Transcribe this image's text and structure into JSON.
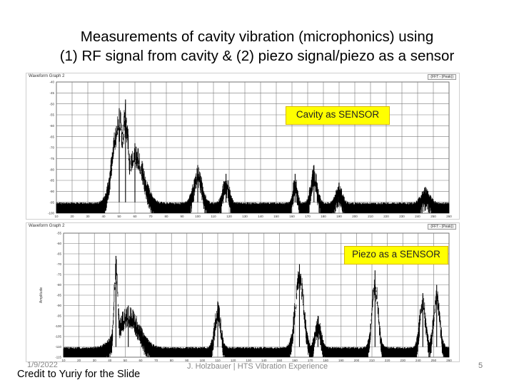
{
  "slide": {
    "title_line1": "Measurements of cavity vibration (microphonics) using",
    "title_line2": "(1) RF signal from cavity  & (2) piezo signal/piezo as a sensor",
    "date": "1/9/2022",
    "author": "J. Holzbauer | HTS Vibration Experience",
    "page_number": "5",
    "credit": "Credit to Yuriy for the Slide"
  },
  "colors": {
    "trace": "#000000",
    "grid": "#7a7a7a",
    "callout_fill": "#ffff00"
  },
  "chart_data": [
    {
      "type": "line",
      "panel_title": "Waveform Graph 2",
      "legend": "(FFT - (Peak))",
      "annotation": "Cavity as SENSOR",
      "xlabel": "",
      "ylabel": "",
      "x_ticks": [
        "10",
        "20",
        "30",
        "40",
        "50",
        "60",
        "70",
        "80",
        "90",
        "100",
        "110",
        "120",
        "130",
        "140",
        "150",
        "160",
        "170",
        "180",
        "190",
        "200",
        "210",
        "220",
        "230",
        "240",
        "250",
        "260"
      ],
      "y_ticks": [
        "-40",
        "-45",
        "-50",
        "-55",
        "-60",
        "-65",
        "-70",
        "-75",
        "-80",
        "-85",
        "-90",
        "-95",
        "-100"
      ],
      "xlim": [
        10,
        260
      ],
      "ylim": [
        -100,
        -40
      ],
      "noise_floor": -95,
      "peaks": [
        {
          "x": 50,
          "y": -52,
          "width": 6
        },
        {
          "x": 54,
          "y": -48,
          "width": 3
        },
        {
          "x": 60,
          "y": -68,
          "width": 8
        },
        {
          "x": 100,
          "y": -78,
          "width": 4
        },
        {
          "x": 118,
          "y": -82,
          "width": 3
        },
        {
          "x": 162,
          "y": -82,
          "width": 2
        },
        {
          "x": 174,
          "y": -78,
          "width": 3
        },
        {
          "x": 190,
          "y": -86,
          "width": 3
        },
        {
          "x": 245,
          "y": -88,
          "width": 4
        }
      ]
    },
    {
      "type": "line",
      "panel_title": "Waveform Graph 2",
      "legend": "(FFT - (Peak))",
      "annotation": "Piezo as a SENSOR",
      "xlabel": "",
      "ylabel": "Amplitude",
      "x_ticks": [
        "10",
        "20",
        "30",
        "40",
        "50",
        "60",
        "70",
        "80",
        "90",
        "100",
        "110",
        "120",
        "130",
        "140",
        "150",
        "160",
        "170",
        "180",
        "190",
        "200",
        "210",
        "220",
        "230",
        "240",
        "250",
        "260"
      ],
      "y_ticks": [
        "-55",
        "-60",
        "-65",
        "-70",
        "-75",
        "-80",
        "-85",
        "-90",
        "-95",
        "-100",
        "-105",
        "-110",
        "-115"
      ],
      "xlim": [
        10,
        260
      ],
      "ylim": [
        -115,
        -55
      ],
      "noise_floor": -110,
      "peaks": [
        {
          "x": 44,
          "y": -66,
          "width": 2
        },
        {
          "x": 52,
          "y": -90,
          "width": 10
        },
        {
          "x": 110,
          "y": -88,
          "width": 3
        },
        {
          "x": 163,
          "y": -70,
          "width": 4
        },
        {
          "x": 175,
          "y": -95,
          "width": 3
        },
        {
          "x": 212,
          "y": -73,
          "width": 3
        },
        {
          "x": 243,
          "y": -84,
          "width": 3
        },
        {
          "x": 252,
          "y": -80,
          "width": 3
        }
      ]
    }
  ]
}
